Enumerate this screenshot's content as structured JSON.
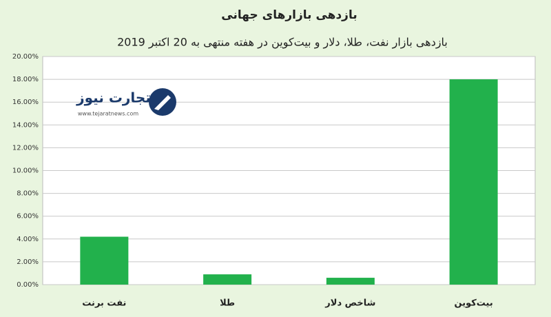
{
  "chart_data": {
    "type": "bar",
    "title": "بازدهی بازارهای جهانی",
    "subtitle": "بازدهی بازار نفت، طلا، دلار و بیت‌کوین در هفته منتهی به 20 اکتبر 2019",
    "categories": [
      "نفت برنت",
      "طلا",
      "شاخص دلار",
      "بیت‌کوین"
    ],
    "values": [
      4.2,
      0.9,
      0.6,
      18.0
    ],
    "color": "#22b14c",
    "ylim": [
      0,
      20
    ],
    "yticks": [
      {
        "value": 0,
        "label": "0.00%"
      },
      {
        "value": 2,
        "label": "2.00%"
      },
      {
        "value": 4,
        "label": "4.00%"
      },
      {
        "value": 6,
        "label": "6.00%"
      },
      {
        "value": 8,
        "label": "8.00%"
      },
      {
        "value": 10,
        "label": "10.00%"
      },
      {
        "value": 12,
        "label": "12.00%"
      },
      {
        "value": 14,
        "label": "14.00%"
      },
      {
        "value": 16,
        "label": "16.00%"
      },
      {
        "value": 18,
        "label": "18.00%"
      },
      {
        "value": 20,
        "label": "20.00%"
      }
    ],
    "grid": true
  },
  "watermark": {
    "name": "تجارت نیوز",
    "url": "www.tejaratnews.com"
  }
}
